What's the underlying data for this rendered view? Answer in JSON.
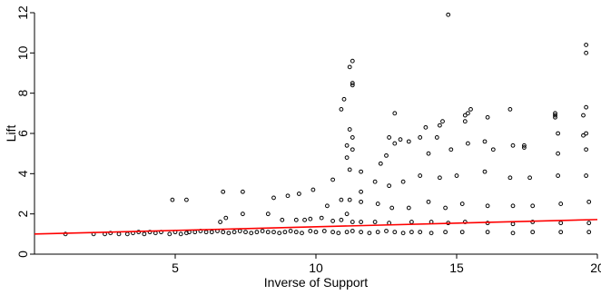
{
  "chart_data": {
    "type": "scatter",
    "xlabel": "Inverse of Support",
    "ylabel": "Lift",
    "xlim": [
      0,
      20
    ],
    "ylim": [
      0,
      12
    ],
    "x_ticks": [
      5,
      10,
      15,
      20
    ],
    "y_ticks": [
      0,
      2,
      4,
      6,
      8,
      10,
      12
    ],
    "grid": false,
    "legend": "none",
    "point_color": "#000000",
    "line_color": "#ff0000",
    "trend_line": {
      "x": [
        0,
        20
      ],
      "y": [
        1.0,
        1.72
      ]
    },
    "points": {
      "x": [
        1.1,
        2.1,
        2.5,
        2.7,
        3.0,
        3.3,
        3.5,
        3.7,
        3.9,
        4.1,
        4.3,
        4.5,
        4.8,
        5.0,
        5.2,
        5.4,
        5.5,
        5.7,
        5.9,
        6.1,
        6.3,
        6.5,
        6.7,
        6.9,
        7.1,
        7.3,
        7.5,
        7.7,
        7.9,
        8.1,
        8.3,
        8.5,
        8.7,
        8.9,
        9.1,
        9.3,
        9.5,
        9.8,
        10.0,
        10.3,
        10.6,
        10.8,
        11.1,
        11.3,
        11.6,
        11.9,
        12.2,
        12.5,
        12.8,
        13.1,
        13.4,
        13.7,
        14.1,
        14.6,
        15.2,
        16.1,
        17.0,
        17.7,
        18.7,
        19.7,
        4.9,
        5.4,
        6.6,
        6.8,
        7.4,
        8.3,
        8.8,
        9.3,
        9.6,
        9.8,
        10.2,
        10.6,
        10.9,
        11.1,
        11.3,
        11.6,
        12.1,
        12.6,
        13.4,
        14.1,
        14.7,
        15.3,
        16.1,
        17.0,
        17.7,
        18.7,
        19.7,
        6.7,
        7.4,
        8.5,
        9.0,
        9.4,
        9.9,
        10.4,
        10.9,
        11.2,
        11.6,
        12.2,
        12.7,
        13.3,
        14.0,
        14.6,
        15.2,
        16.1,
        17.0,
        17.7,
        18.7,
        19.7,
        10.6,
        11.1,
        11.6,
        12.1,
        12.6,
        13.1,
        13.7,
        14.4,
        15.0,
        16.0,
        16.9,
        17.6,
        18.6,
        19.6,
        11.0,
        11.3,
        12.5,
        13.3,
        14.0,
        14.8,
        15.4,
        16.3,
        17.4,
        18.6,
        19.6,
        10.9,
        11.3,
        12.8,
        13.7,
        14.5,
        15.3,
        16.1,
        17.4,
        18.6,
        19.6,
        11.1,
        11.3,
        12.3,
        12.6,
        13.9,
        14.3,
        15.3,
        16.9,
        18.5,
        19.5,
        11.2,
        11.2,
        13.0,
        14.4,
        15.4,
        16.0,
        17.0,
        18.5,
        19.6,
        11.3,
        11.3,
        12.8,
        15.5,
        18.5,
        19.5,
        11.2,
        11.6,
        14.7,
        19.6,
        19.6
      ],
      "y": [
        1.0,
        1.0,
        1.0,
        1.05,
        1.0,
        1.0,
        1.05,
        1.1,
        1.0,
        1.1,
        1.05,
        1.1,
        1.0,
        1.1,
        1.0,
        1.05,
        1.1,
        1.1,
        1.15,
        1.1,
        1.1,
        1.15,
        1.1,
        1.05,
        1.1,
        1.15,
        1.1,
        1.05,
        1.1,
        1.15,
        1.1,
        1.1,
        1.05,
        1.1,
        1.15,
        1.1,
        1.05,
        1.15,
        1.1,
        1.15,
        1.1,
        1.05,
        1.1,
        1.15,
        1.1,
        1.05,
        1.1,
        1.15,
        1.1,
        1.05,
        1.1,
        1.1,
        1.05,
        1.1,
        1.1,
        1.1,
        1.05,
        1.1,
        1.1,
        1.1,
        2.7,
        2.7,
        1.6,
        1.8,
        2.0,
        2.0,
        1.7,
        1.7,
        1.7,
        1.75,
        1.8,
        1.65,
        1.7,
        2.0,
        1.6,
        1.6,
        1.6,
        1.55,
        1.6,
        1.6,
        1.55,
        1.6,
        1.55,
        1.5,
        1.6,
        1.55,
        1.55,
        3.1,
        3.1,
        2.8,
        2.9,
        3.0,
        3.2,
        2.4,
        2.7,
        2.7,
        2.6,
        2.5,
        2.3,
        2.3,
        2.6,
        2.3,
        2.5,
        2.4,
        2.4,
        2.4,
        2.5,
        2.6,
        3.7,
        4.8,
        3.1,
        3.6,
        3.4,
        3.6,
        3.9,
        3.8,
        3.9,
        4.1,
        3.8,
        3.8,
        3.9,
        3.9,
        7.7,
        9.6,
        4.9,
        5.6,
        5.0,
        5.2,
        5.5,
        5.2,
        5.4,
        5.0,
        5.2,
        7.2,
        8.4,
        5.5,
        5.8,
        6.6,
        6.6,
        6.8,
        5.3,
        6.0,
        6.0,
        5.4,
        5.8,
        4.5,
        5.8,
        6.3,
        5.8,
        6.9,
        7.2,
        7.0,
        5.9,
        9.3,
        6.2,
        5.7,
        6.4,
        7.0,
        5.6,
        5.4,
        6.9,
        7.3,
        8.5,
        5.2,
        7.0,
        7.2,
        6.8,
        6.9,
        4.2,
        4.1,
        11.9,
        10.4,
        10.0
      ]
    }
  }
}
